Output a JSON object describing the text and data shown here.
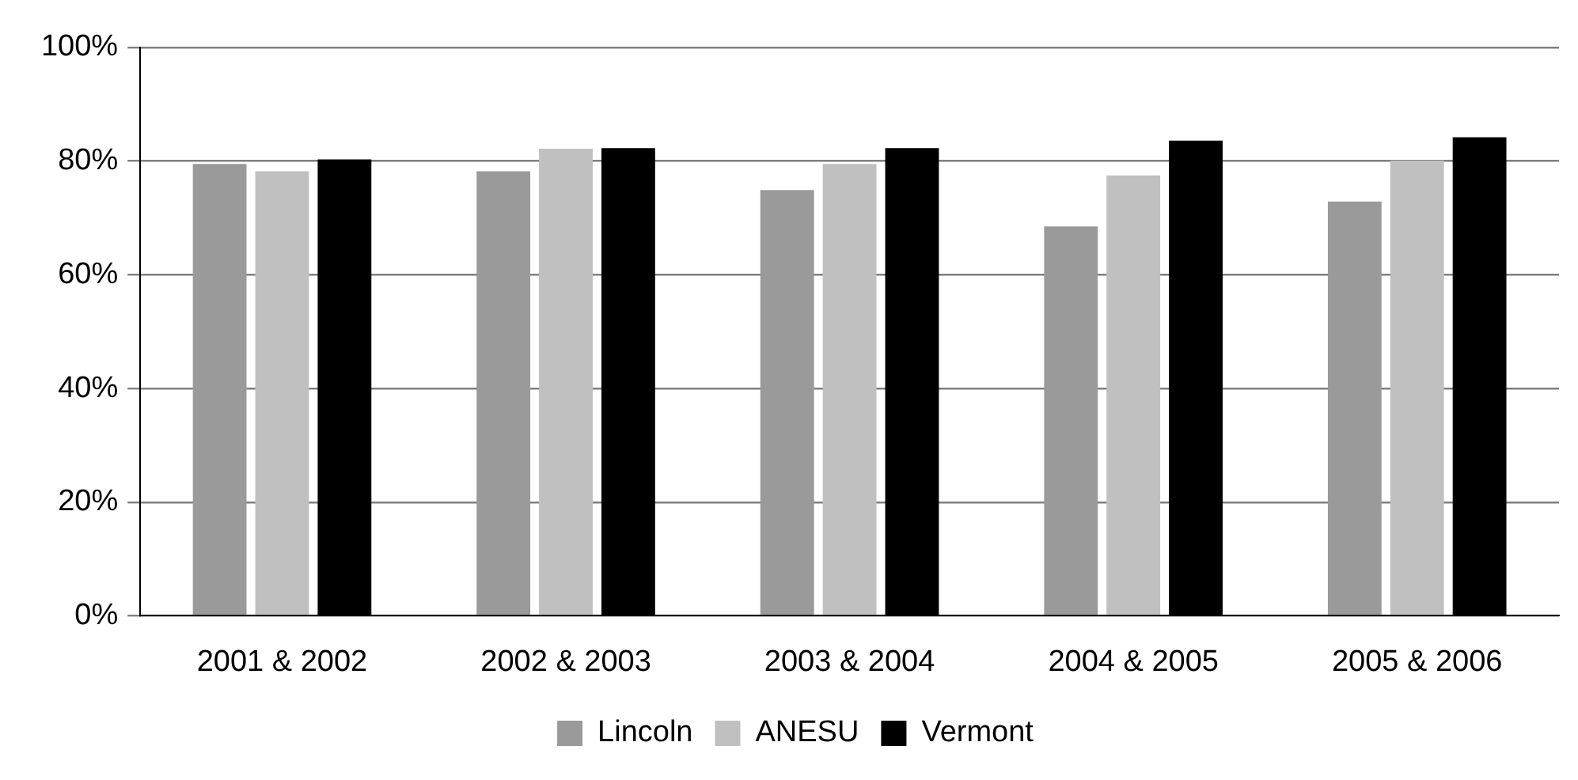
{
  "chart_data": {
    "type": "bar",
    "categories": [
      "2001 & 2002",
      "2002 & 2003",
      "2003 & 2004",
      "2004 & 2005",
      "2005 & 2006"
    ],
    "series": [
      {
        "name": "Lincoln",
        "color": "#9a9a9a",
        "values": [
          79.5,
          78.2,
          74.9,
          68.5,
          72.9
        ]
      },
      {
        "name": "ANESU",
        "color": "#c0c0c0",
        "values": [
          78.2,
          82.2,
          79.5,
          77.5,
          80.1
        ]
      },
      {
        "name": "Vermont",
        "color": "#000000",
        "values": [
          80.3,
          82.3,
          82.3,
          83.6,
          84.2
        ]
      }
    ],
    "ylim": [
      0,
      100
    ],
    "yticks": [
      {
        "value": 0,
        "label": "0%"
      },
      {
        "value": 20,
        "label": "20%"
      },
      {
        "value": 40,
        "label": "40%"
      },
      {
        "value": 60,
        "label": "60%"
      },
      {
        "value": 80,
        "label": "80%"
      },
      {
        "value": 100,
        "label": "100%"
      }
    ],
    "grid": "y",
    "legend": "bottom"
  }
}
